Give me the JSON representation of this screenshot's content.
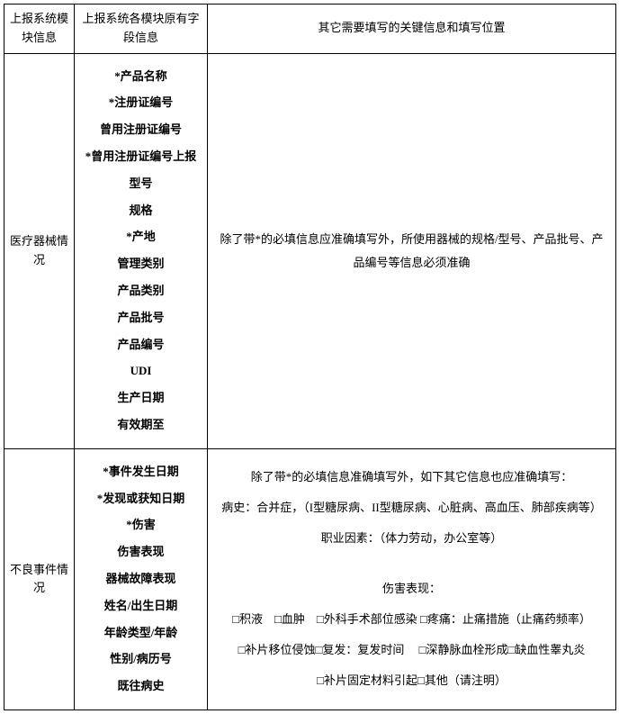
{
  "header": {
    "col1": "上报系统模块信息",
    "col2": "上报系统各模块原有字段信息",
    "col3": "其它需要填写的关键信息和填写位置"
  },
  "row1": {
    "label": "医疗器械情况",
    "fields": [
      "*产品名称",
      "*注册证编号",
      "曾用注册证编号",
      "*曾用注册证编号上报",
      "型号",
      "规格",
      "*产地",
      "管理类别",
      "产品类别",
      "产品批号",
      "产品编号",
      "UDI",
      "生产日期",
      "有效期至"
    ],
    "note": "除了带*的必填信息应准确填写外，所使用器械的规格/型号、产品批号、产品编号等信息必须准确"
  },
  "row2": {
    "label": "不良事件情况",
    "fields": [
      "*事件发生日期",
      "*发现或获知日期",
      "*伤害",
      "伤害表现",
      "器械故障表现",
      "姓名/出生日期",
      "年龄类型/年龄",
      "性别/病历号",
      "既往病史"
    ],
    "notes": {
      "line1": "除了带*的必填信息准确填写外，如下其它信息也应准确填写：",
      "line2": "病史：合并症，（I型糖尿病、II型糖尿病、心脏病、高血压、肺部疾病等）",
      "line3": "职业因素：（体力劳动，办公室等）",
      "line4": "伤害表现：",
      "line5": "□积液　□血肿　□外科手术部位感染 □疼痛：止痛措施（止痛药频率）",
      "line6": "□补片移位侵蚀□复发：复发时间　 □深静脉血栓形成□缺血性睾丸炎",
      "line7": "□补片固定材料引起□其他（请注明）"
    }
  }
}
